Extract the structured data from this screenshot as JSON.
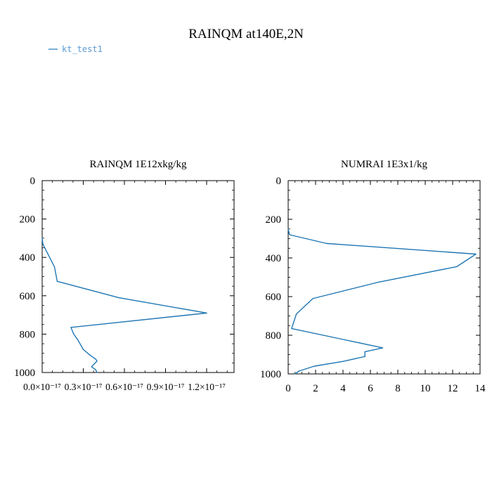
{
  "figure": {
    "title": "RAINQM at140E,2N",
    "legend": {
      "label": "kt_test1",
      "color": "#1f77b4",
      "placement": "top-left"
    }
  },
  "chart_data": [
    {
      "type": "line",
      "title": "RAINQM  1E12xkg/kg",
      "xlabel": "",
      "ylabel": "",
      "y_inverted": true,
      "xlim": [
        0,
        1.4e-17
      ],
      "ylim": [
        1000,
        0
      ],
      "x_ticks": [
        0,
        3e-18,
        6e-18,
        9e-18,
        1.2e-17
      ],
      "x_tick_labels": [
        "0.0×10⁻¹⁷",
        "0.3×10⁻¹⁷",
        "0.6×10⁻¹⁷",
        "0.9×10⁻¹⁷",
        "1.2×10⁻¹⁷"
      ],
      "y_ticks": [
        0,
        200,
        400,
        600,
        800,
        1000
      ],
      "y_tick_labels": [
        "0",
        "200",
        "400",
        "600",
        "800",
        "1000"
      ],
      "series": [
        {
          "name": "kt_test1",
          "color": "#1f77b4",
          "points": [
            [
              0.0,
              300
            ],
            [
              2e-20,
              310
            ],
            [
              5e-20,
              330
            ],
            [
              4e-19,
              380
            ],
            [
              9e-19,
              450
            ],
            [
              1.1e-18,
              525
            ],
            [
              5.6e-18,
              610
            ],
            [
              1.2e-17,
              690
            ],
            [
              2.1e-18,
              765
            ],
            [
              2.3e-18,
              800
            ],
            [
              2.6e-18,
              830
            ],
            [
              3e-18,
              880
            ],
            [
              3.5e-18,
              910
            ],
            [
              3.9e-18,
              930
            ],
            [
              4e-18,
              940
            ],
            [
              3.8e-18,
              955
            ],
            [
              3.6e-18,
              970
            ],
            [
              3.9e-18,
              985
            ],
            [
              4e-18,
              1000
            ]
          ]
        }
      ]
    },
    {
      "type": "line",
      "title": "NUMRAI  1E3x1/kg",
      "xlabel": "",
      "ylabel": "",
      "y_inverted": true,
      "xlim": [
        0,
        14
      ],
      "ylim": [
        1000,
        0
      ],
      "x_ticks": [
        0,
        2,
        4,
        6,
        8,
        10,
        12,
        14
      ],
      "x_tick_labels": [
        "0",
        "2",
        "4",
        "6",
        "8",
        "10",
        "12",
        "14"
      ],
      "y_ticks": [
        0,
        200,
        400,
        600,
        800,
        1000
      ],
      "y_tick_labels": [
        "0",
        "200",
        "400",
        "600",
        "800",
        "1000"
      ],
      "series": [
        {
          "name": "kt_test1",
          "color": "#1f77b4",
          "points": [
            [
              0.0,
              250
            ],
            [
              0.1,
              280
            ],
            [
              2.8,
              325
            ],
            [
              13.7,
              380
            ],
            [
              12.3,
              445
            ],
            [
              6.6,
              525
            ],
            [
              1.8,
              610
            ],
            [
              0.6,
              690
            ],
            [
              0.25,
              765
            ],
            [
              3.9,
              820
            ],
            [
              6.9,
              865
            ],
            [
              5.6,
              885
            ],
            [
              5.6,
              910
            ],
            [
              4.0,
              935
            ],
            [
              1.9,
              960
            ],
            [
              0.8,
              985
            ],
            [
              0.5,
              1000
            ]
          ]
        }
      ]
    }
  ]
}
